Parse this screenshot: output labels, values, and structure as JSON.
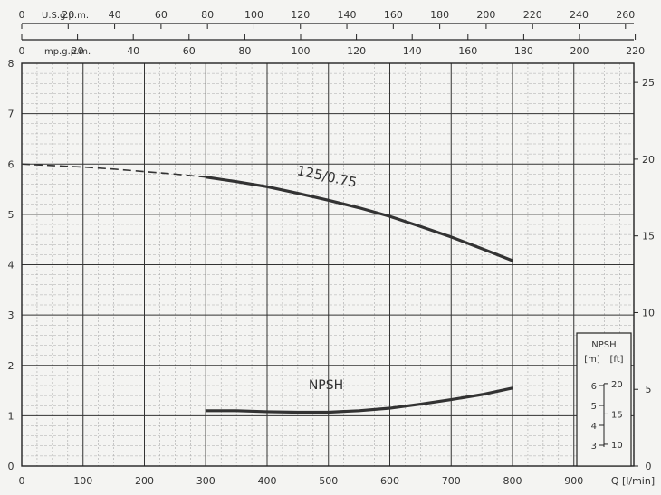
{
  "chart_data": {
    "type": "line",
    "xlabel": "Q [l/min]",
    "x_ticks": [
      0,
      100,
      200,
      300,
      400,
      500,
      600,
      700,
      800,
      900
    ],
    "xlim": [
      0,
      1000
    ],
    "ylim": [
      0,
      8
    ],
    "y_ticks": [
      0,
      1,
      2,
      3,
      4,
      5,
      6,
      7,
      8
    ],
    "y_right_ticks": [
      0,
      5,
      10,
      15,
      20,
      25
    ],
    "top_axis_usgpm": {
      "label": "U.S.g.p.m.",
      "ticks": [
        0,
        20,
        40,
        60,
        80,
        100,
        120,
        140,
        160,
        180,
        200,
        220,
        240,
        260
      ]
    },
    "top_axis_impgpm": {
      "label": "Imp.g.p.m.",
      "ticks": [
        0,
        20,
        40,
        60,
        80,
        100,
        120,
        140,
        160,
        180,
        200,
        220
      ]
    },
    "grid": true,
    "series": [
      {
        "name": "125/0.75",
        "dashed_until": 300,
        "x": [
          0,
          50,
          100,
          150,
          200,
          250,
          300,
          350,
          400,
          450,
          500,
          550,
          600,
          650,
          700,
          750,
          800
        ],
        "y": [
          6.0,
          5.97,
          5.94,
          5.9,
          5.85,
          5.8,
          5.74,
          5.65,
          5.55,
          5.42,
          5.28,
          5.13,
          4.96,
          4.76,
          4.55,
          4.32,
          4.08
        ]
      },
      {
        "name": "NPSH",
        "x": [
          300,
          350,
          400,
          450,
          500,
          550,
          600,
          650,
          700,
          750,
          800
        ],
        "y": [
          1.1,
          1.1,
          1.08,
          1.07,
          1.07,
          1.1,
          1.15,
          1.23,
          1.32,
          1.42,
          1.55
        ]
      }
    ],
    "npsh_legend": {
      "title": "NPSH",
      "units_m": "[m]",
      "units_ft": "[ft]",
      "m_ticks": [
        3,
        4,
        5,
        6
      ],
      "ft_ticks": [
        10,
        15,
        20
      ]
    }
  }
}
